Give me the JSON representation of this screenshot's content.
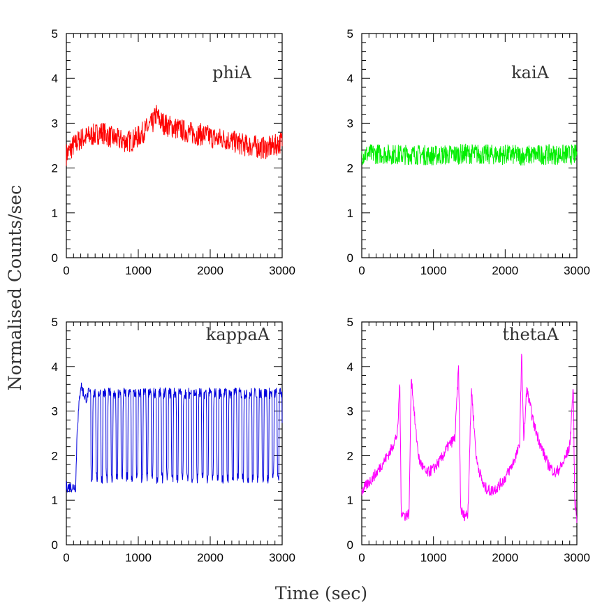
{
  "figure": {
    "xlabel": "Time (sec)",
    "ylabel": "Normalised Counts/sec"
  },
  "chart_data": [
    {
      "type": "line",
      "title": "phiA",
      "color": "#ff0000",
      "xlim": [
        0,
        3000
      ],
      "ylim": [
        0,
        5
      ],
      "x_ticks": [
        "0",
        "1000",
        "2000",
        "3000"
      ],
      "y_ticks": [
        "0",
        "1",
        "2",
        "3",
        "4",
        "5"
      ],
      "series": [
        {
          "x": [
            0,
            100,
            200,
            300,
            400,
            500,
            600,
            700,
            800,
            900,
            1000,
            1100,
            1200,
            1250,
            1300,
            1400,
            1500,
            1600,
            1700,
            1800,
            1900,
            2000,
            2100,
            2200,
            2300,
            2400,
            2500,
            2600,
            2700,
            2800,
            2900,
            3000
          ],
          "y": [
            2.3,
            2.5,
            2.65,
            2.7,
            2.75,
            2.8,
            2.7,
            2.65,
            2.6,
            2.6,
            2.7,
            2.85,
            3.0,
            3.2,
            3.05,
            2.95,
            2.9,
            2.85,
            2.8,
            2.75,
            2.75,
            2.7,
            2.65,
            2.65,
            2.6,
            2.55,
            2.5,
            2.5,
            2.45,
            2.45,
            2.5,
            2.6
          ]
        }
      ]
    },
    {
      "type": "line",
      "title": "kaiA",
      "color": "#00ee00",
      "xlim": [
        0,
        3000
      ],
      "ylim": [
        0,
        5
      ],
      "x_ticks": [
        "0",
        "1000",
        "2000",
        "3000"
      ],
      "y_ticks": [
        "0",
        "1",
        "2",
        "3",
        "4",
        "5"
      ],
      "series": [
        {
          "x": [
            0,
            250,
            500,
            750,
            1000,
            1250,
            1500,
            1750,
            2000,
            2250,
            2500,
            2750,
            3000
          ],
          "y": [
            2.3,
            2.32,
            2.3,
            2.3,
            2.28,
            2.3,
            2.32,
            2.3,
            2.3,
            2.28,
            2.3,
            2.3,
            2.3
          ]
        }
      ]
    },
    {
      "type": "line",
      "title": "kappaA",
      "color": "#0000dd",
      "xlim": [
        0,
        3000
      ],
      "ylim": [
        0,
        5
      ],
      "x_ticks": [
        "0",
        "1000",
        "2000",
        "3000"
      ],
      "y_ticks": [
        "0",
        "1",
        "2",
        "3",
        "4",
        "5"
      ],
      "series": [
        {
          "x": [
            0,
            130,
            150,
            200,
            260,
            300,
            3000
          ],
          "y": [
            1.3,
            1.3,
            2.6,
            3.6,
            3.3,
            3.3,
            3.3
          ],
          "oscillation": {
            "start": 300,
            "end": 3000,
            "period": 70,
            "low": 1.5,
            "high": 3.4
          }
        }
      ]
    },
    {
      "type": "line",
      "title": "thetaA",
      "color": "#ff00ff",
      "xlim": [
        0,
        3000
      ],
      "ylim": [
        0,
        5
      ],
      "x_ticks": [
        "0",
        "1000",
        "2000",
        "3000"
      ],
      "y_ticks": [
        "0",
        "1",
        "2",
        "3",
        "4",
        "5"
      ],
      "series": [
        {
          "x": [
            0,
            200,
            400,
            500,
            530,
            550,
            600,
            660,
            690,
            750,
            800,
            900,
            1000,
            1100,
            1200,
            1300,
            1350,
            1380,
            1420,
            1480,
            1530,
            1560,
            1600,
            1700,
            1800,
            1900,
            2000,
            2100,
            2200,
            2230,
            2260,
            2300,
            2400,
            2500,
            2600,
            2700,
            2800,
            2900,
            2950,
            2970,
            3000
          ],
          "y": [
            1.2,
            1.6,
            2.1,
            2.5,
            3.7,
            0.75,
            0.65,
            0.7,
            3.8,
            2.6,
            1.9,
            1.6,
            1.7,
            1.9,
            2.2,
            2.4,
            4.0,
            0.8,
            0.65,
            0.7,
            3.5,
            2.8,
            1.9,
            1.3,
            1.2,
            1.3,
            1.5,
            1.8,
            2.2,
            4.3,
            2.3,
            3.5,
            2.7,
            2.2,
            1.8,
            1.6,
            1.8,
            2.2,
            3.6,
            1.0,
            0.6
          ]
        }
      ]
    }
  ]
}
